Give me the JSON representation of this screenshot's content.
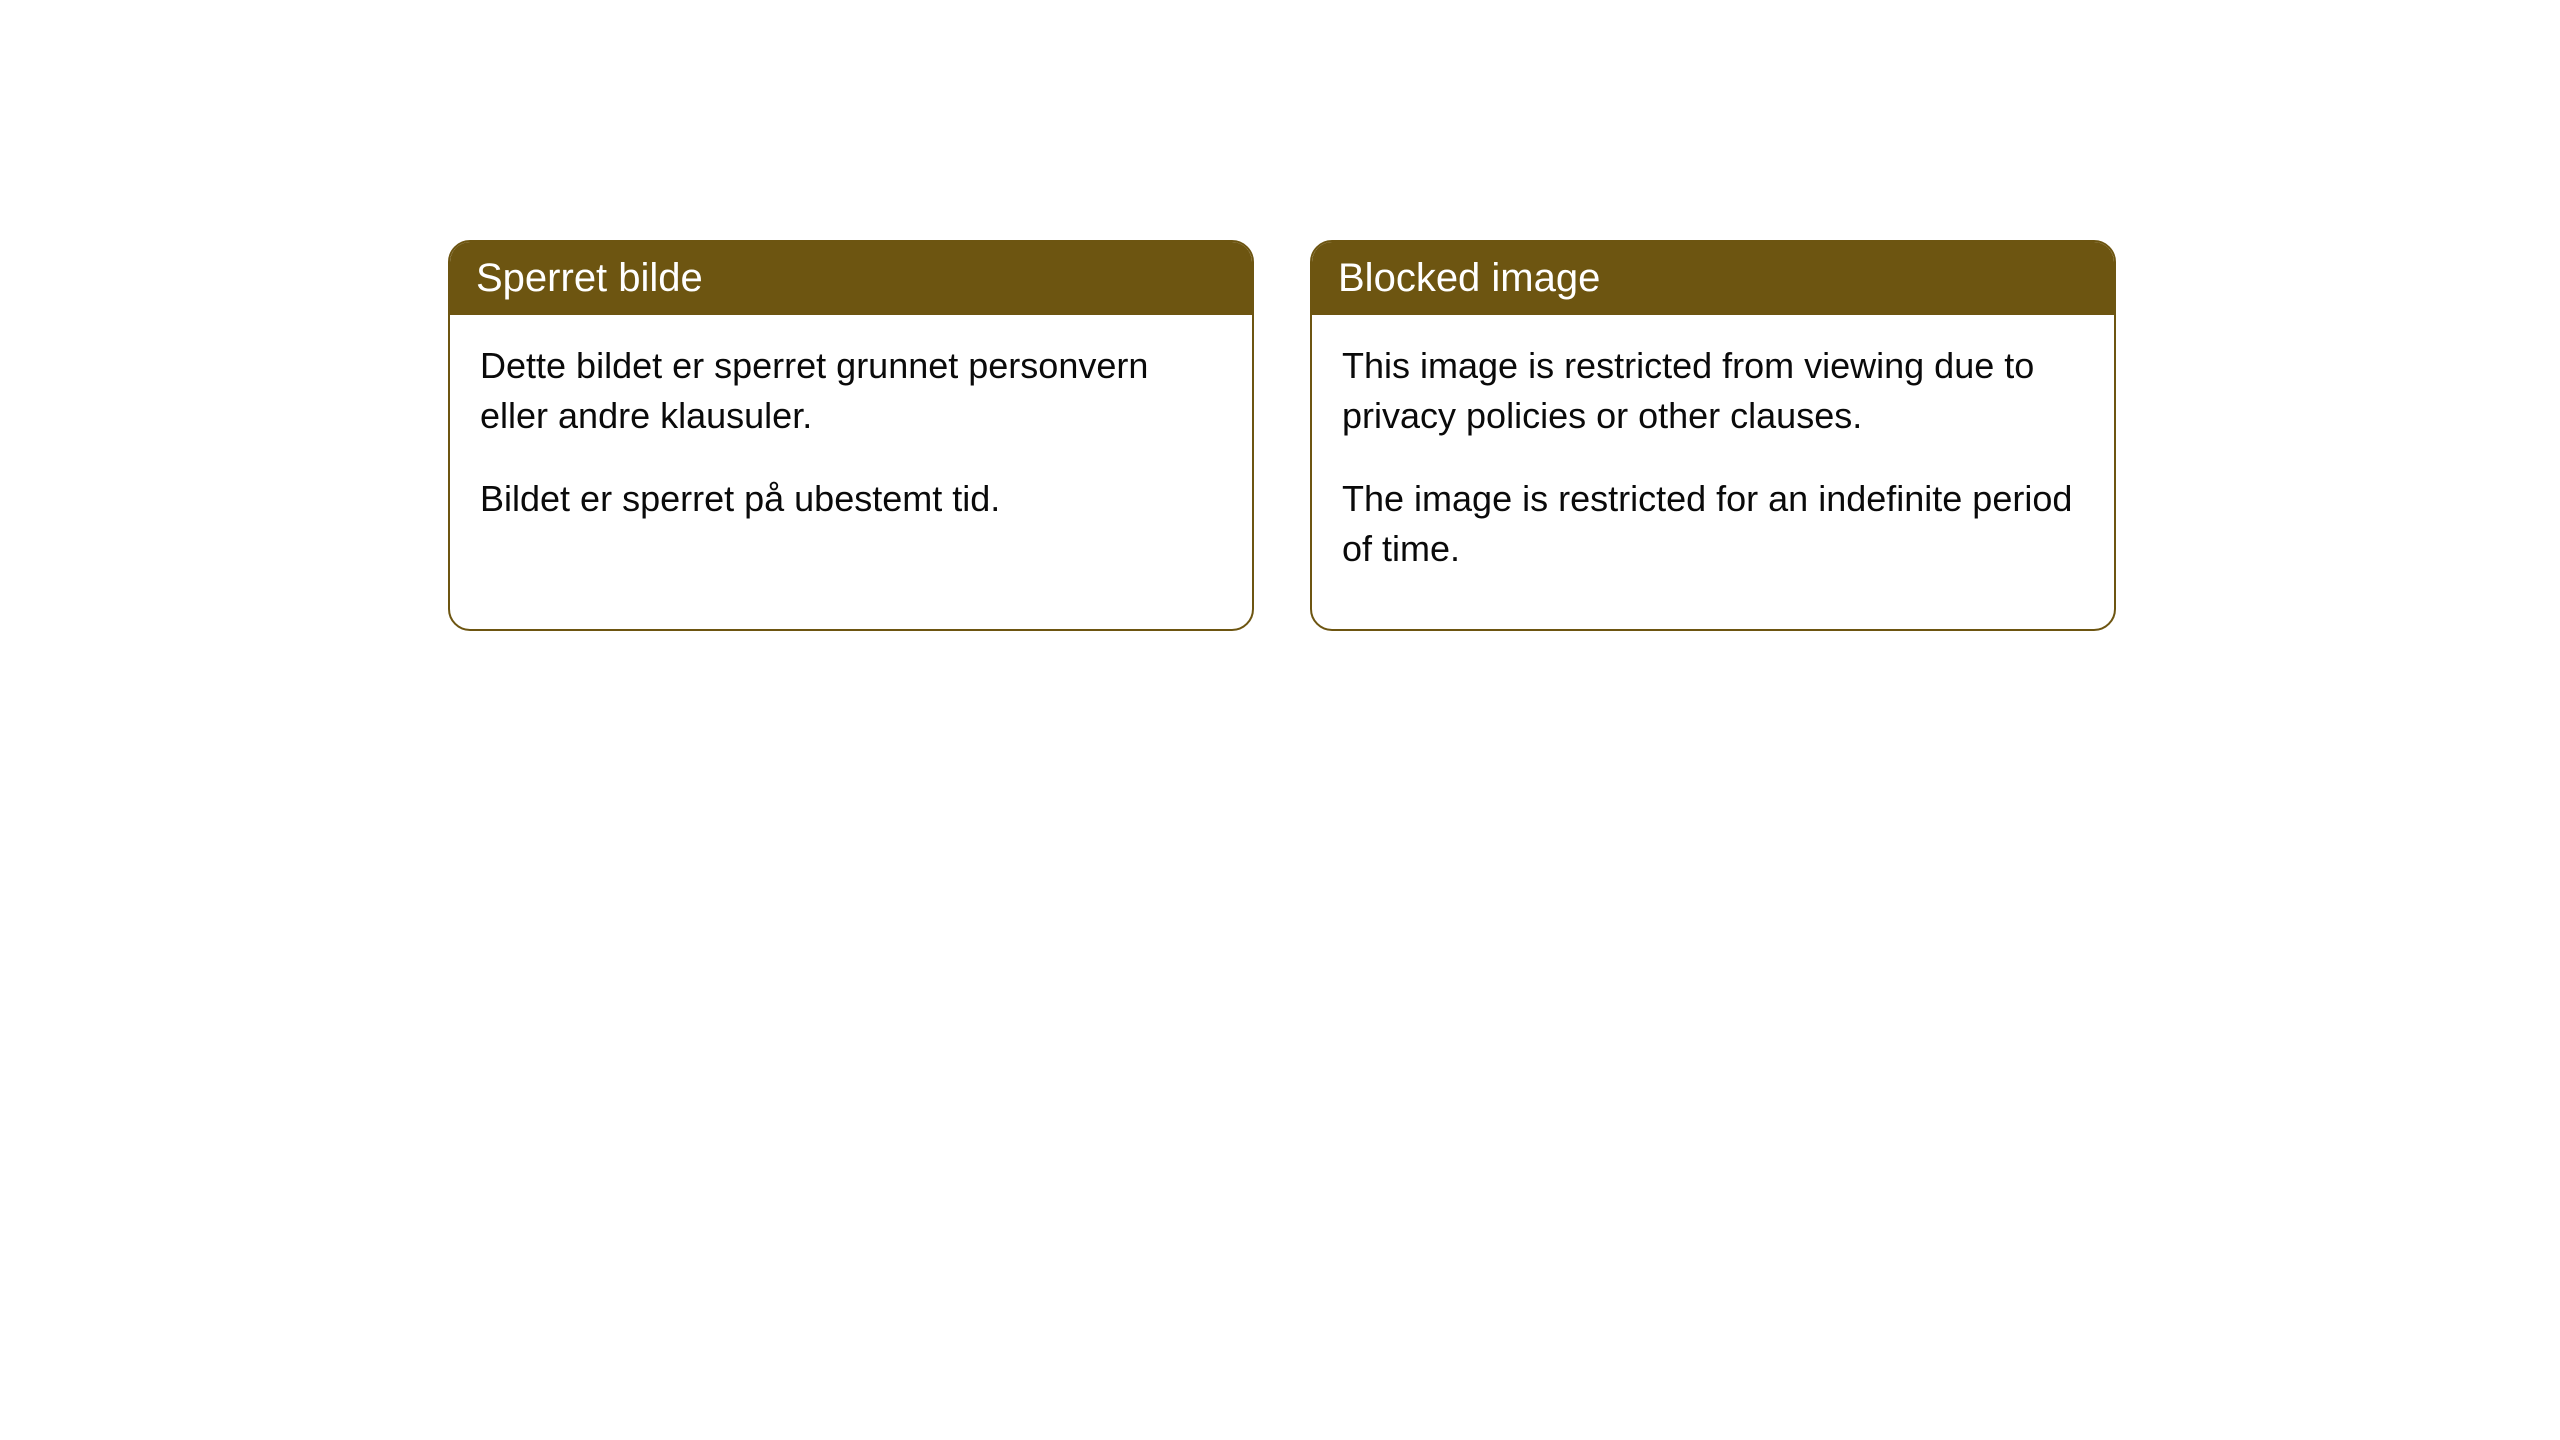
{
  "cards": [
    {
      "title": "Sperret bilde",
      "paragraph1": "Dette bildet er sperret grunnet personvern eller andre klausuler.",
      "paragraph2": "Bildet er sperret på ubestemt tid."
    },
    {
      "title": "Blocked image",
      "paragraph1": "This image is restricted from viewing due to privacy policies or other clauses.",
      "paragraph2": "The image is restricted for an indefinite period of time."
    }
  ],
  "styling": {
    "header_background_color": "#6d5511",
    "header_text_color": "#ffffff",
    "border_color": "#6d5511",
    "body_text_color": "#0a0a0a",
    "card_background_color": "#ffffff",
    "page_background_color": "#ffffff",
    "border_radius": 22,
    "title_fontsize": 40,
    "body_fontsize": 36
  }
}
